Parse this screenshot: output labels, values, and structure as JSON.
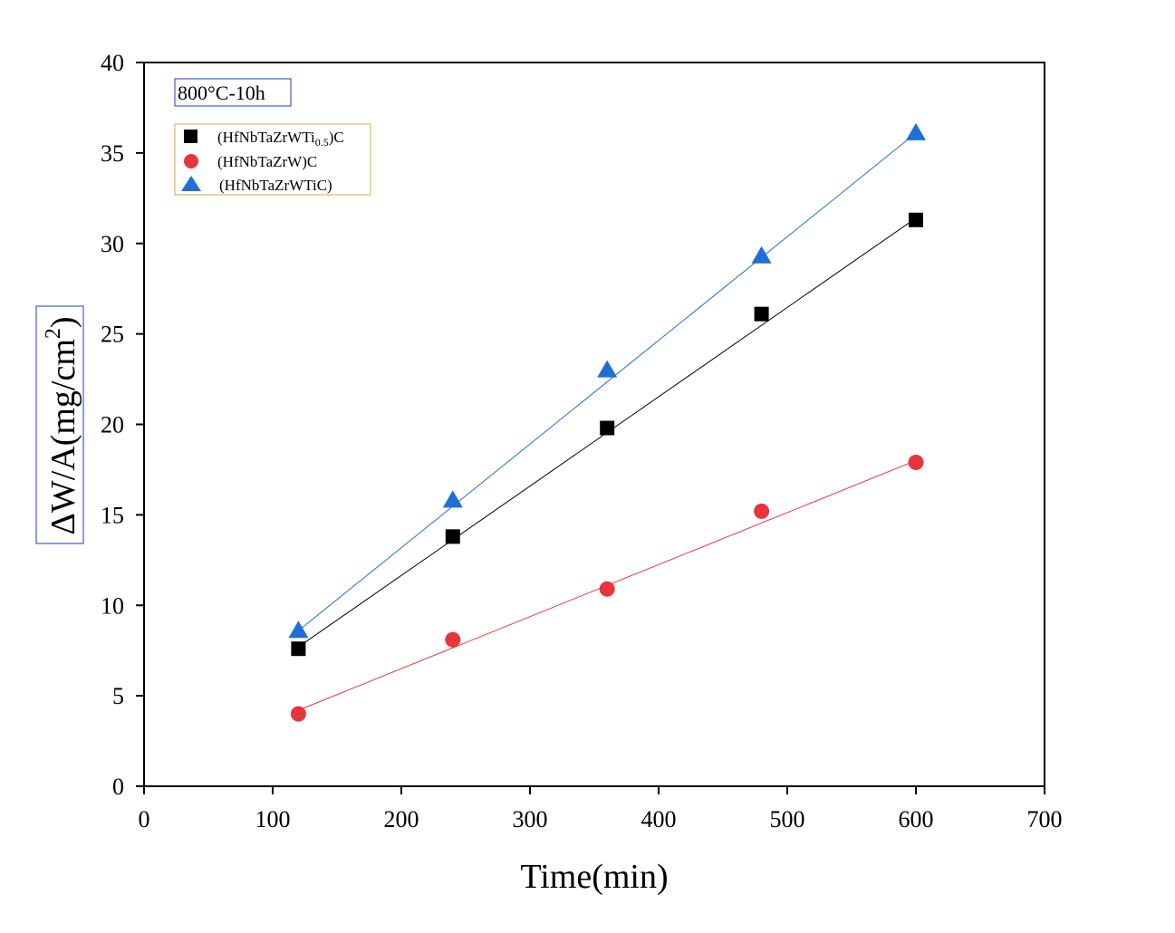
{
  "chart_data": {
    "type": "scatter",
    "title": "",
    "annotation": "800°C-10h",
    "xlabel": "Time(min)",
    "ylabel": "ΔW/A(mg/cm²)",
    "ylabel_main": "ΔW/A(mg/cm",
    "ylabel_sup": "2",
    "ylabel_close": ")",
    "xlim": [
      0,
      700
    ],
    "ylim": [
      0,
      40
    ],
    "xticks": [
      0,
      100,
      200,
      300,
      400,
      500,
      600,
      700
    ],
    "yticks": [
      0,
      5,
      10,
      15,
      20,
      25,
      30,
      35,
      40
    ],
    "grid": false,
    "legend_position": "top-left",
    "x": [
      120,
      240,
      360,
      480,
      600
    ],
    "series": [
      {
        "name": "(HfNbTaZrWTi0.5)C",
        "name_main": "(HfNbTaZrWTi",
        "name_sub": "0.5",
        "name_tail": ")C",
        "marker": "square",
        "color": "#000000",
        "values": [
          7.6,
          13.8,
          19.8,
          26.1,
          31.3
        ],
        "fit": [
          7.7,
          31.4
        ]
      },
      {
        "name": "(HfNbTaZrW)C",
        "name_main": "(HfNbTaZrW)C",
        "marker": "circle",
        "color": "#e8353b",
        "values": [
          4.0,
          8.1,
          10.9,
          15.2,
          17.9
        ],
        "fit": [
          4.2,
          18.0
        ]
      },
      {
        "name": "(HfNbTaZrWTiC)",
        "name_main": "(HfNbTaZrWTiC)",
        "marker": "triangle",
        "color": "#1f6fd6",
        "values": [
          8.6,
          15.8,
          23.0,
          29.3,
          36.1
        ],
        "fit": [
          8.6,
          36.1
        ]
      }
    ]
  }
}
